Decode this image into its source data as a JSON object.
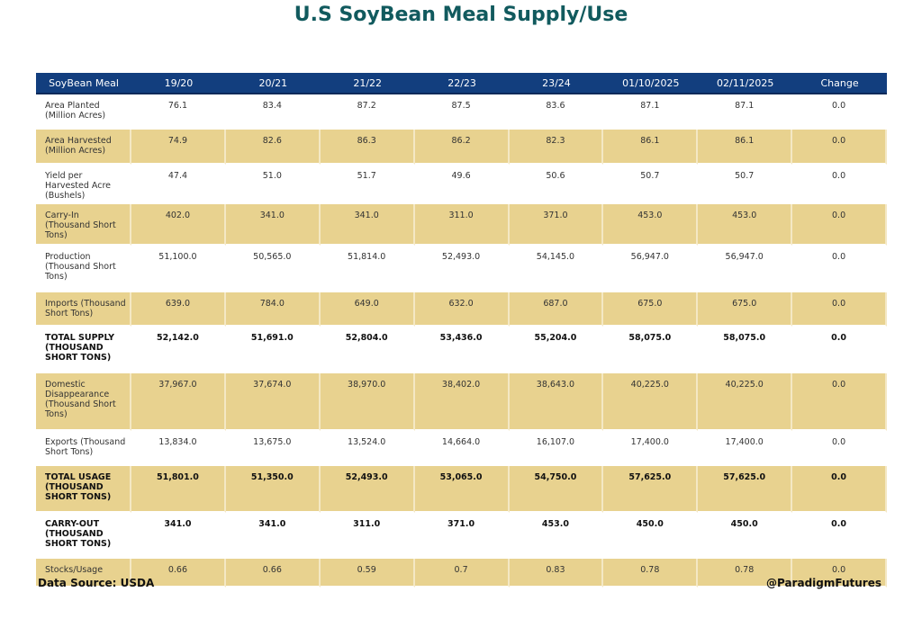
{
  "title": "U.S SoyBean Meal Supply/Use",
  "colors": {
    "header": "#123e7e",
    "highlight_row": "#e8d28f",
    "title": "#115a5e"
  },
  "chart_data": {
    "type": "table",
    "title": "U.S SoyBean Meal Supply/Use",
    "columns": [
      "SoyBean Meal",
      "19/20",
      "20/21",
      "21/22",
      "22/23",
      "23/24",
      "01/10/2025",
      "02/11/2025",
      "Change"
    ],
    "rows": [
      {
        "label": "Area Planted (Million Acres)",
        "values": [
          "76.1",
          "83.4",
          "87.2",
          "87.5",
          "83.6",
          "87.1",
          "87.1",
          "0.0"
        ],
        "bold": false,
        "shaded": false
      },
      {
        "label": "Area Harvested (Million Acres)",
        "values": [
          "74.9",
          "82.6",
          "86.3",
          "86.2",
          "82.3",
          "86.1",
          "86.1",
          "0.0"
        ],
        "bold": false,
        "shaded": true
      },
      {
        "label": "Yield per Harvested Acre (Bushels)",
        "values": [
          "47.4",
          "51.0",
          "51.7",
          "49.6",
          "50.6",
          "50.7",
          "50.7",
          "0.0"
        ],
        "bold": false,
        "shaded": false
      },
      {
        "label": "Carry-In (Thousand Short Tons)",
        "values": [
          "402.0",
          "341.0",
          "341.0",
          "311.0",
          "371.0",
          "453.0",
          "453.0",
          "0.0"
        ],
        "bold": false,
        "shaded": true
      },
      {
        "label": "Production (Thousand Short Tons)",
        "values": [
          "51,100.0",
          "50,565.0",
          "51,814.0",
          "52,493.0",
          "54,145.0",
          "56,947.0",
          "56,947.0",
          "0.0"
        ],
        "bold": false,
        "shaded": false
      },
      {
        "label": "Imports (Thousand Short Tons)",
        "values": [
          "639.0",
          "784.0",
          "649.0",
          "632.0",
          "687.0",
          "675.0",
          "675.0",
          "0.0"
        ],
        "bold": false,
        "shaded": true
      },
      {
        "label": "TOTAL SUPPLY (THOUSAND SHORT TONS)",
        "values": [
          "52,142.0",
          "51,691.0",
          "52,804.0",
          "53,436.0",
          "55,204.0",
          "58,075.0",
          "58,075.0",
          "0.0"
        ],
        "bold": true,
        "shaded": false
      },
      {
        "label": "Domestic Disappearance (Thousand Short Tons)",
        "values": [
          "37,967.0",
          "37,674.0",
          "38,970.0",
          "38,402.0",
          "38,643.0",
          "40,225.0",
          "40,225.0",
          "0.0"
        ],
        "bold": false,
        "shaded": true
      },
      {
        "label": "Exports (Thousand Short Tons)",
        "values": [
          "13,834.0",
          "13,675.0",
          "13,524.0",
          "14,664.0",
          "16,107.0",
          "17,400.0",
          "17,400.0",
          "0.0"
        ],
        "bold": false,
        "shaded": false
      },
      {
        "label": "TOTAL USAGE (THOUSAND SHORT TONS)",
        "values": [
          "51,801.0",
          "51,350.0",
          "52,493.0",
          "53,065.0",
          "54,750.0",
          "57,625.0",
          "57,625.0",
          "0.0"
        ],
        "bold": true,
        "shaded": true
      },
      {
        "label": "CARRY-OUT (THOUSAND SHORT TONS)",
        "values": [
          "341.0",
          "341.0",
          "311.0",
          "371.0",
          "453.0",
          "450.0",
          "450.0",
          "0.0"
        ],
        "bold": true,
        "shaded": false
      },
      {
        "label": "Stocks/Usage",
        "values": [
          "0.66",
          "0.66",
          "0.59",
          "0.7",
          "0.83",
          "0.78",
          "0.78",
          "0.0"
        ],
        "bold": false,
        "shaded": true
      }
    ]
  },
  "footer": {
    "source": "Data Source: USDA",
    "handle": "@ParadigmFutures"
  }
}
